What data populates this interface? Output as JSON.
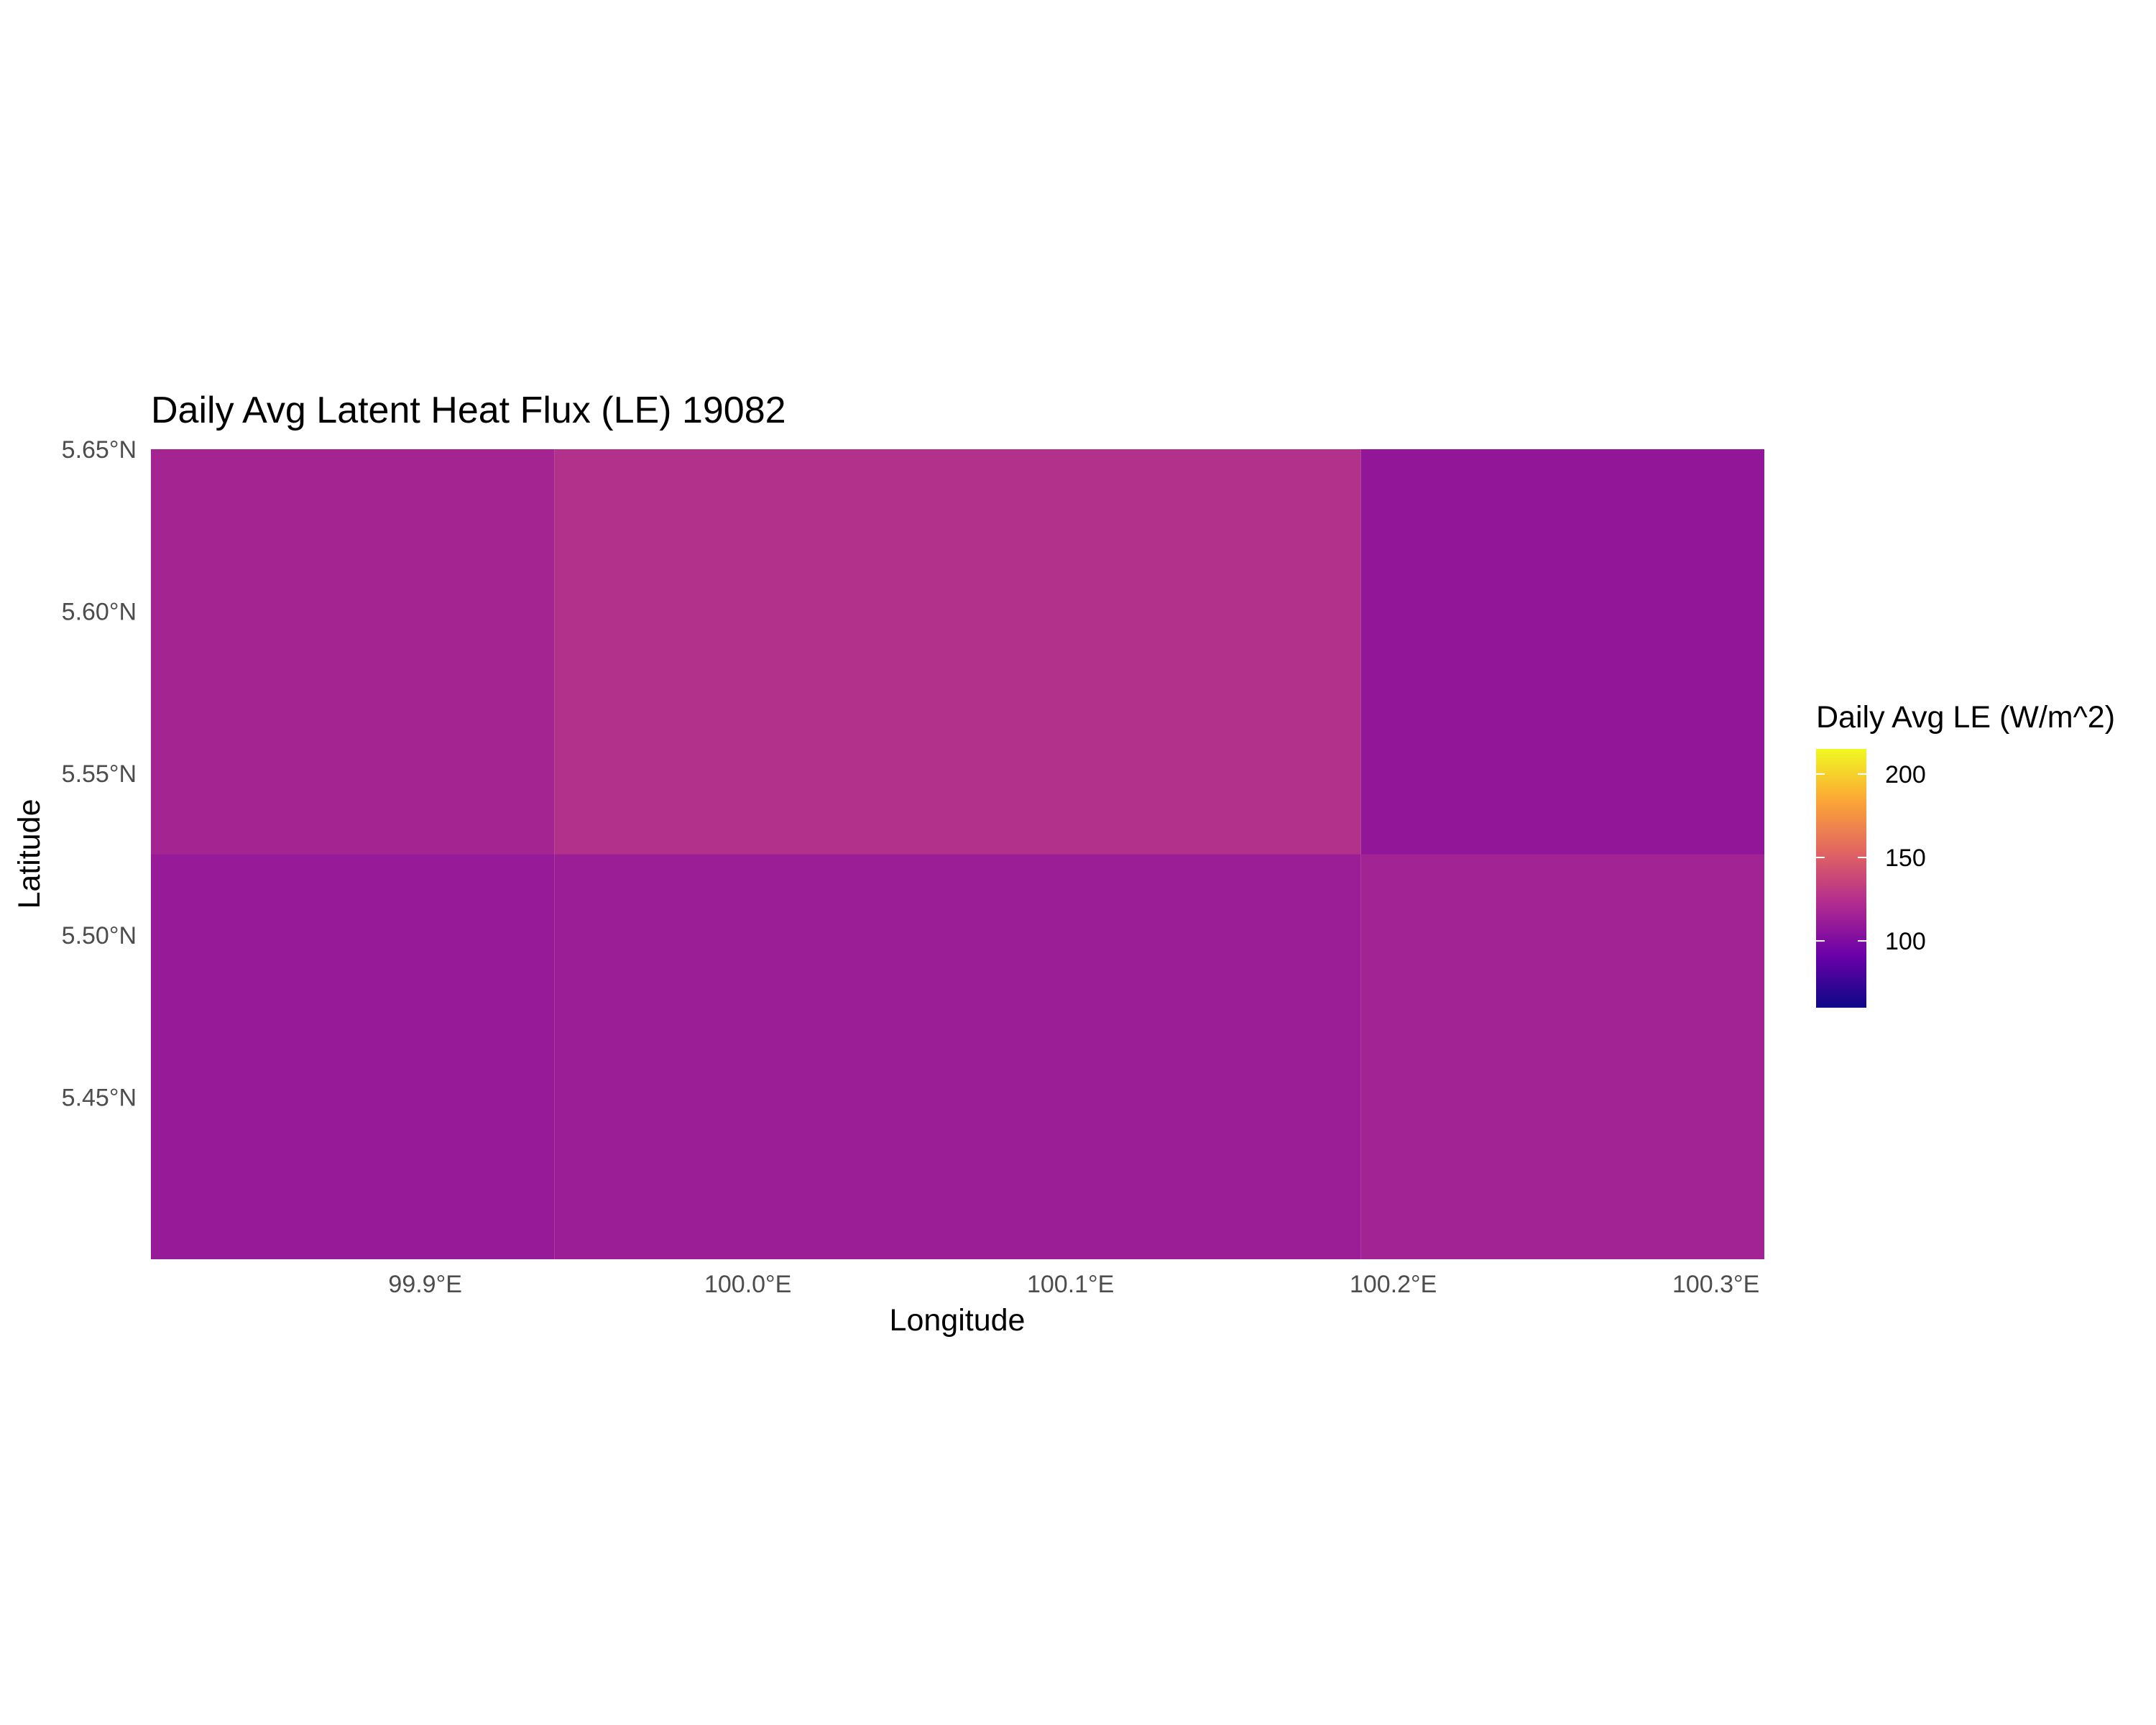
{
  "chart_data": {
    "type": "heatmap",
    "title": "Daily Avg Latent Heat Flux (LE) 19082",
    "xlabel": "Longitude",
    "ylabel": "Latitude",
    "xlim": [
      99.815,
      100.315
    ],
    "ylim": [
      5.4,
      5.65
    ],
    "x_ticks": [
      {
        "value": 99.9,
        "label": "99.9°E"
      },
      {
        "value": 100.0,
        "label": "100.0°E"
      },
      {
        "value": 100.1,
        "label": "100.1°E"
      },
      {
        "value": 100.2,
        "label": "100.2°E"
      },
      {
        "value": 100.3,
        "label": "100.3°E"
      }
    ],
    "y_ticks": [
      {
        "value": 5.45,
        "label": "5.45°N"
      },
      {
        "value": 5.5,
        "label": "5.50°N"
      },
      {
        "value": 5.55,
        "label": "5.55°N"
      },
      {
        "value": 5.6,
        "label": "5.60°N"
      },
      {
        "value": 5.65,
        "label": "5.65°N"
      }
    ],
    "grid": false,
    "cells": [
      {
        "x0": 99.815,
        "x1": 99.94,
        "y0": 5.525,
        "y1": 5.65,
        "value": 120,
        "color": "#a42592"
      },
      {
        "x0": 99.94,
        "x1": 100.065,
        "y0": 5.525,
        "y1": 5.65,
        "value": 135,
        "color": "#b2318a"
      },
      {
        "x0": 100.065,
        "x1": 100.19,
        "y0": 5.525,
        "y1": 5.65,
        "value": 135,
        "color": "#b2318a"
      },
      {
        "x0": 100.19,
        "x1": 100.315,
        "y0": 5.525,
        "y1": 5.65,
        "value": 108,
        "color": "#921798"
      },
      {
        "x0": 99.815,
        "x1": 99.94,
        "y0": 5.4,
        "y1": 5.525,
        "value": 110,
        "color": "#971a98"
      },
      {
        "x0": 99.94,
        "x1": 100.065,
        "y0": 5.4,
        "y1": 5.525,
        "value": 113,
        "color": "#9c1e96"
      },
      {
        "x0": 100.065,
        "x1": 100.19,
        "y0": 5.4,
        "y1": 5.525,
        "value": 113,
        "color": "#9c1e96"
      },
      {
        "x0": 100.19,
        "x1": 100.315,
        "y0": 5.4,
        "y1": 5.525,
        "value": 118,
        "color": "#a12394"
      }
    ],
    "legend": {
      "title": "Daily Avg LE (W/m^2)",
      "placement": "right",
      "min": 60,
      "max": 215,
      "ticks": [
        {
          "value": 100,
          "label": "100"
        },
        {
          "value": 150,
          "label": "150"
        },
        {
          "value": 200,
          "label": "200"
        }
      ],
      "colors": [
        "#0d0887",
        "#6a00a8",
        "#b12a90",
        "#e16462",
        "#fca636",
        "#f0f921"
      ]
    }
  }
}
